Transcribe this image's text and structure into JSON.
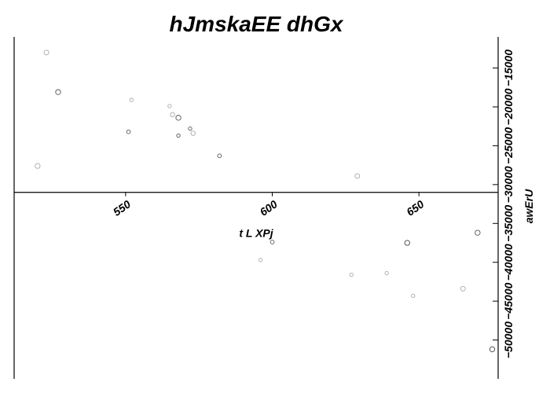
{
  "chart_data": {
    "type": "scatter",
    "title": "hJmskaEE dhGx",
    "xlabel": "t L XPj",
    "ylabel": "awErU",
    "xlim": [
      512,
      677
    ],
    "ylim": [
      -55000,
      -11000
    ],
    "x_axis_position_y": -31000,
    "x_ticks": [
      550,
      600,
      650
    ],
    "x_tick_labels": [
      "550",
      "600",
      "650"
    ],
    "y_ticks": [
      -15000,
      -20000,
      -25000,
      -30000,
      -35000,
      -40000,
      -45000,
      -50000
    ],
    "y_tick_labels": [
      "−15000",
      "−20000",
      "−25000",
      "−30000",
      "−35000",
      "−40000",
      "−45000",
      "−50000"
    ],
    "grid": false,
    "legend": "none",
    "series": [
      {
        "points": [
          {
            "x": 523,
            "y": -13000,
            "size": 3,
            "color": "#aaaaaa"
          },
          {
            "x": 527,
            "y": -18100,
            "size": 3.2,
            "color": "#555555"
          },
          {
            "x": 520,
            "y": -27600,
            "size": 3.2,
            "color": "#aaaaaa"
          },
          {
            "x": 552,
            "y": -19100,
            "size": 2.2,
            "color": "#aaaaaa"
          },
          {
            "x": 551,
            "y": -23200,
            "size": 2.4,
            "color": "#555555"
          },
          {
            "x": 565,
            "y": -19900,
            "size": 2.2,
            "color": "#aaaaaa"
          },
          {
            "x": 566,
            "y": -21000,
            "size": 2.8,
            "color": "#aaaaaa"
          },
          {
            "x": 568,
            "y": -21400,
            "size": 3.2,
            "color": "#555555"
          },
          {
            "x": 568,
            "y": -23700,
            "size": 2.2,
            "color": "#555555"
          },
          {
            "x": 572,
            "y": -22800,
            "size": 2.2,
            "color": "#555555"
          },
          {
            "x": 573,
            "y": -23400,
            "size": 2.8,
            "color": "#aaaaaa"
          },
          {
            "x": 582,
            "y": -26300,
            "size": 2.4,
            "color": "#555555"
          },
          {
            "x": 629,
            "y": -28900,
            "size": 3,
            "color": "#aaaaaa"
          },
          {
            "x": 600,
            "y": -37400,
            "size": 2.4,
            "color": "#555555"
          },
          {
            "x": 596,
            "y": -39700,
            "size": 2.2,
            "color": "#aaaaaa"
          },
          {
            "x": 646,
            "y": -37500,
            "size": 3.2,
            "color": "#444444"
          },
          {
            "x": 670,
            "y": -36200,
            "size": 3.2,
            "color": "#555555"
          },
          {
            "x": 627,
            "y": -41600,
            "size": 2.2,
            "color": "#aaaaaa"
          },
          {
            "x": 639,
            "y": -41400,
            "size": 2.2,
            "color": "#aaaaaa"
          },
          {
            "x": 648,
            "y": -44300,
            "size": 2.2,
            "color": "#aaaaaa"
          },
          {
            "x": 665,
            "y": -43400,
            "size": 3,
            "color": "#aaaaaa"
          },
          {
            "x": 675,
            "y": -51200,
            "size": 3.2,
            "color": "#444444"
          }
        ]
      }
    ]
  }
}
